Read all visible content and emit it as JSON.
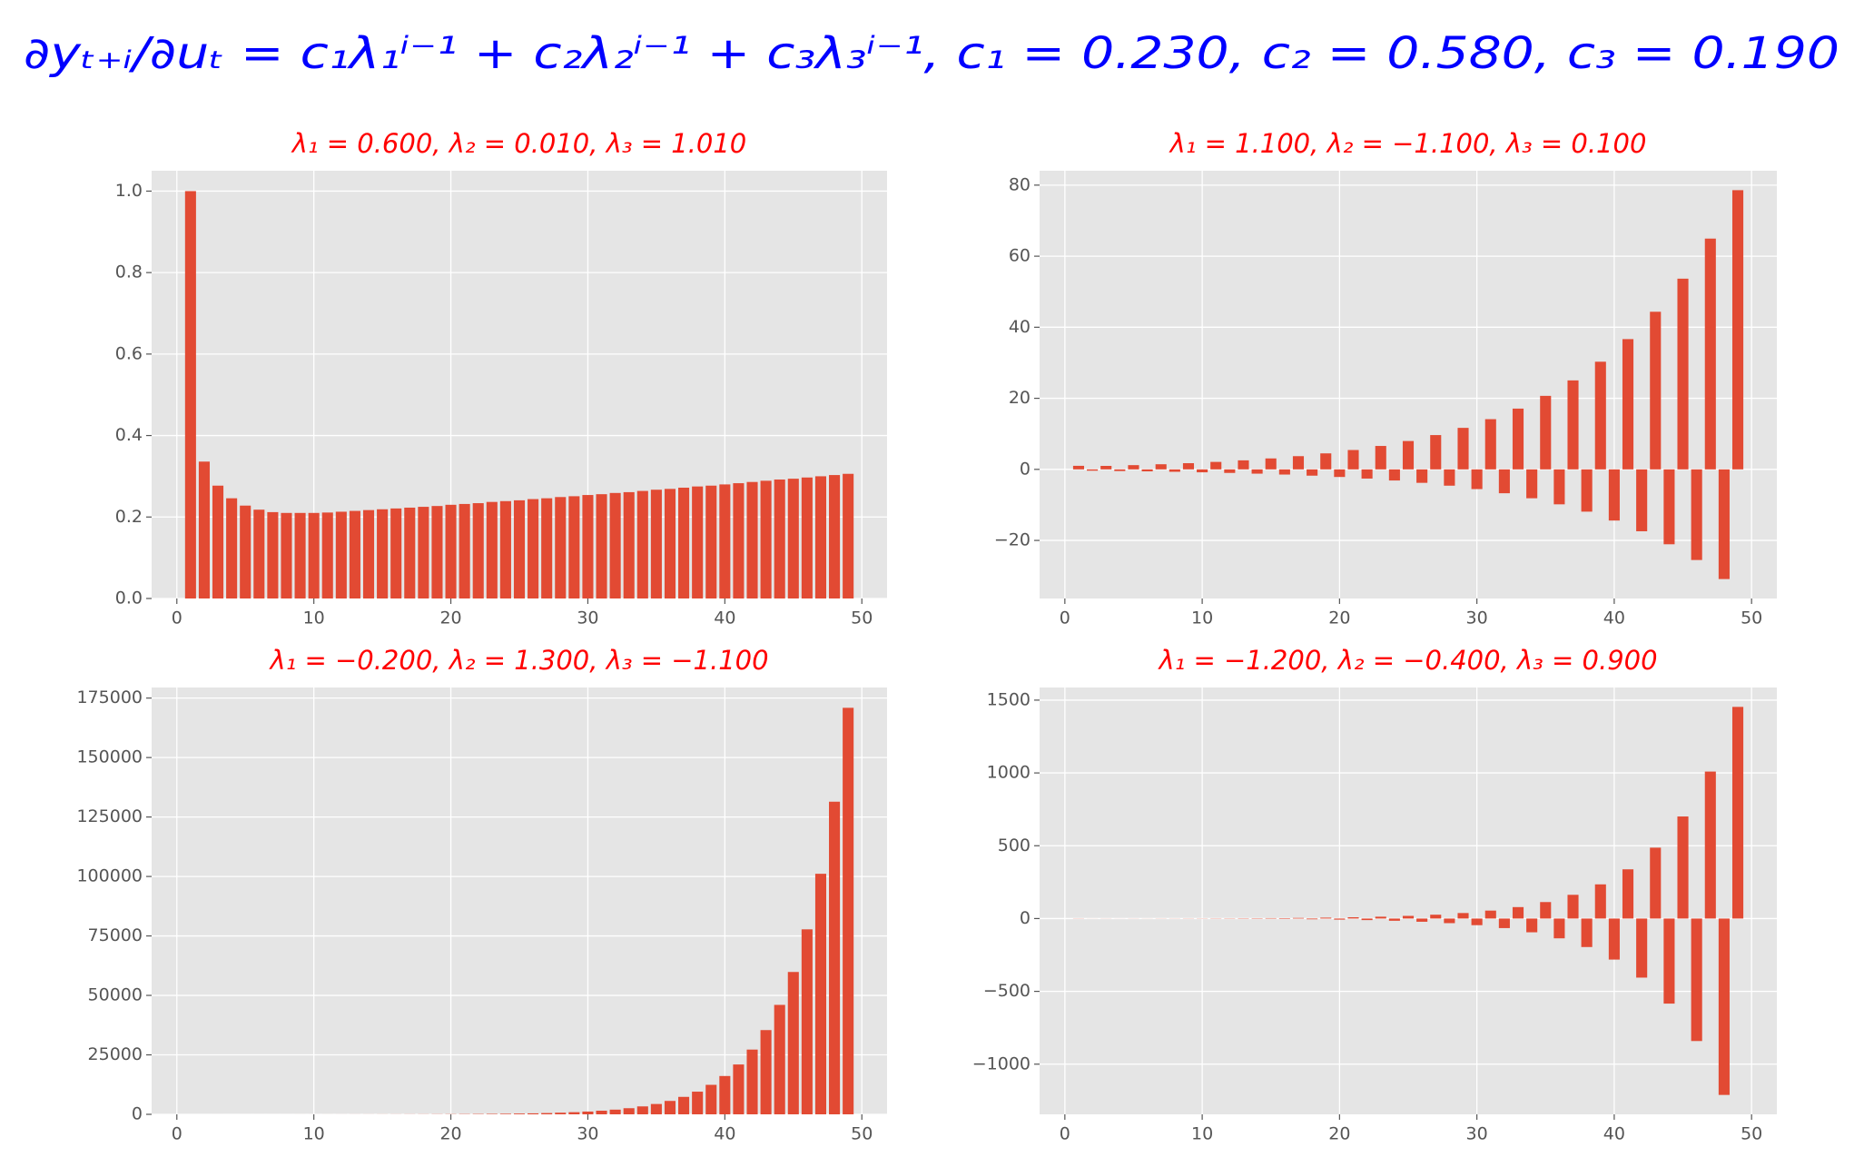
{
  "suptitle": "∂yₜ₊ᵢ/∂uₜ = c₁λ₁ⁱ⁻¹ + c₂λ₂ⁱ⁻¹ + c₃λ₃ⁱ⁻¹, c₁ = 0.230, c₂ = 0.580, c₃ = 0.190",
  "suptitle_color": "#0000ff",
  "chart_data": [
    {
      "type": "bar",
      "title": "λ₁ = 0.600,  λ₂ = 0.010,  λ₃ = 1.010",
      "title_color": "#ff0000",
      "color": "#e24a33",
      "grid": true,
      "x": [
        1,
        2,
        3,
        4,
        5,
        6,
        7,
        8,
        9,
        10,
        11,
        12,
        13,
        14,
        15,
        16,
        17,
        18,
        19,
        20,
        21,
        22,
        23,
        24,
        25,
        26,
        27,
        28,
        29,
        30,
        31,
        32,
        33,
        34,
        35,
        36,
        37,
        38,
        39,
        40,
        41,
        42,
        43,
        44,
        45,
        46,
        47,
        48,
        49
      ],
      "values": [
        1.0,
        0.336,
        0.277,
        0.246,
        0.228,
        0.218,
        0.212,
        0.21,
        0.21,
        0.21,
        0.211,
        0.213,
        0.215,
        0.217,
        0.219,
        0.221,
        0.223,
        0.225,
        0.227,
        0.23,
        0.232,
        0.234,
        0.237,
        0.239,
        0.241,
        0.244,
        0.246,
        0.249,
        0.251,
        0.254,
        0.256,
        0.259,
        0.261,
        0.264,
        0.267,
        0.269,
        0.272,
        0.275,
        0.277,
        0.28,
        0.283,
        0.286,
        0.289,
        0.292,
        0.294,
        0.297,
        0.3,
        0.303,
        0.306
      ],
      "xlim": [
        -1.84,
        51.84
      ],
      "xticks": [
        0,
        10,
        20,
        30,
        40,
        50
      ],
      "ylim": [
        0,
        1.05
      ],
      "yticks": [
        {
          "value": 0,
          "label": "0.0"
        },
        0.2,
        0.4,
        0.6,
        0.8,
        {
          "value": 1,
          "label": "1.0"
        }
      ]
    },
    {
      "type": "bar",
      "title": "λ₁ = 1.100,  λ₂ = −1.100,  λ₃ = 0.100",
      "title_color": "#ff0000",
      "color": "#e24a33",
      "grid": true,
      "x": [
        1,
        2,
        3,
        4,
        5,
        6,
        7,
        8,
        9,
        10,
        11,
        12,
        13,
        14,
        15,
        16,
        17,
        18,
        19,
        20,
        21,
        22,
        23,
        24,
        25,
        26,
        27,
        28,
        29,
        30,
        31,
        32,
        33,
        34,
        35,
        36,
        37,
        38,
        39,
        40,
        41,
        42,
        43,
        44,
        45,
        46,
        47,
        48,
        49
      ],
      "values": [
        1.0,
        -0.37,
        0.98,
        -0.47,
        1.19,
        -0.56,
        1.44,
        -0.68,
        1.74,
        -0.83,
        2.1,
        -1.0,
        2.54,
        -1.21,
        3.08,
        -1.46,
        3.72,
        -1.77,
        4.5,
        -2.14,
        5.45,
        -2.59,
        6.59,
        -3.13,
        7.98,
        -3.79,
        9.65,
        -4.59,
        11.68,
        -5.55,
        14.13,
        -6.72,
        17.1,
        -8.13,
        20.69,
        -9.84,
        25.04,
        -11.9,
        30.3,
        -14.4,
        36.66,
        -17.42,
        44.36,
        -21.08,
        53.67,
        -25.51,
        64.95,
        -30.87,
        78.58
      ],
      "xlim": [
        -1.84,
        51.84
      ],
      "xticks": [
        0,
        10,
        20,
        30,
        40,
        50
      ],
      "ylim": [
        -36.34,
        84.05
      ],
      "yticks": [
        {
          "value": -20,
          "label": "−20"
        },
        0,
        20,
        40,
        60,
        80
      ]
    },
    {
      "type": "bar",
      "title": "λ₁ = −0.200,  λ₂ = 1.300,  λ₃ = −1.100",
      "title_color": "#ff0000",
      "color": "#e24a33",
      "grid": true,
      "x": [
        1,
        2,
        3,
        4,
        5,
        6,
        7,
        8,
        9,
        10,
        11,
        12,
        13,
        14,
        15,
        16,
        17,
        18,
        19,
        20,
        21,
        22,
        23,
        24,
        25,
        26,
        27,
        28,
        29,
        30,
        31,
        32,
        33,
        34,
        35,
        36,
        37,
        38,
        39,
        40,
        41,
        42,
        43,
        44,
        45,
        46,
        47,
        48,
        49
      ],
      "values": [
        1.0,
        0.5,
        1.22,
        1.02,
        1.94,
        1.85,
        3.14,
        3.27,
        5.14,
        5.7,
        8.49,
        9.85,
        14.11,
        16.91,
        23.56,
        28.89,
        39.47,
        49.21,
        66.28,
        83.63,
        111.5,
        141.9,
        187.8,
        240.5,
        316.7,
        407.2,
        534.3,
        689.2,
        901.9,
        1165.9,
        1522.9,
        1971.8,
        2572.1,
        3334.1,
        4345,
        5636.8,
        7340.7,
        9528.8,
        12402.9,
        16106.8,
        20957.6,
        27224.2,
        35414.2,
        46013.5,
        59844.8,
        77768.3,
        101131.8,
        131435,
        170905.5
      ],
      "xlim": [
        -1.84,
        51.84
      ],
      "xticks": [
        0,
        10,
        20,
        30,
        40,
        50
      ],
      "ylim": [
        0,
        179451
      ],
      "yticks": [
        0,
        25000,
        50000,
        75000,
        100000,
        125000,
        150000,
        175000
      ]
    },
    {
      "type": "bar",
      "title": "λ₁ = −1.200,  λ₂ = −0.400,  λ₃ = 0.900",
      "title_color": "#ff0000",
      "color": "#e24a33",
      "grid": true,
      "x": [
        1,
        2,
        3,
        4,
        5,
        6,
        7,
        8,
        9,
        10,
        11,
        12,
        13,
        14,
        15,
        16,
        17,
        18,
        19,
        20,
        21,
        22,
        23,
        24,
        25,
        26,
        27,
        28,
        29,
        30,
        31,
        32,
        33,
        34,
        35,
        36,
        37,
        38,
        39,
        40,
        41,
        42,
        43,
        44,
        45,
        46,
        47,
        48,
        49
      ],
      "values": [
        1.0,
        -0.34,
        0.58,
        -0.3,
        0.62,
        -0.47,
        0.79,
        -0.73,
        1.07,
        -1.11,
        1.49,
        -1.65,
        2.1,
        -2.41,
        3.0,
        -3.51,
        4.29,
        -5.07,
        6.15,
        -7.32,
        8.84,
        -10.56,
        12.72,
        -15.22,
        18.3,
        -21.93,
        26.34,
        -31.58,
        37.92,
        -45.49,
        54.61,
        -65.51,
        78.63,
        -94.34,
        113.22,
        -135.85,
        163.03,
        -195.63,
        234.76,
        -281.7,
        338.05,
        -405.66,
        486.79,
        -584.15,
        700.98,
        -841.17,
        1009.41,
        -1211.28,
        1453.55
      ],
      "xlim": [
        -1.84,
        51.84
      ],
      "xticks": [
        0,
        10,
        20,
        30,
        40,
        50
      ],
      "ylim": [
        -1344.5,
        1586.8
      ],
      "yticks": [
        {
          "value": -1000,
          "label": "−1000"
        },
        {
          "value": -500,
          "label": "−500"
        },
        0,
        500,
        1000,
        1500
      ]
    }
  ]
}
